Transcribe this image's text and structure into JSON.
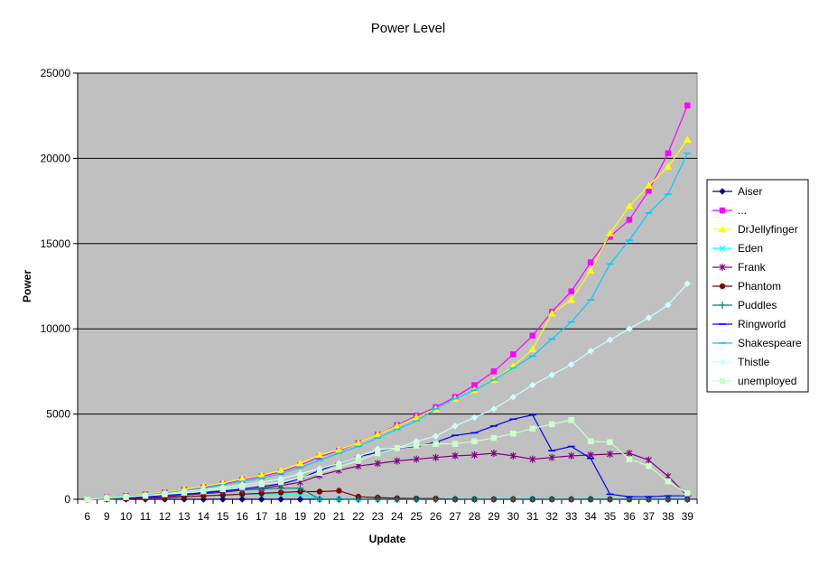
{
  "chart_data": {
    "type": "line",
    "title": "Power Level",
    "xlabel": "Update",
    "ylabel": "Power",
    "categories": [
      "6",
      "9",
      "10",
      "11",
      "12",
      "13",
      "14",
      "15",
      "16",
      "17",
      "18",
      "19",
      "20",
      "21",
      "22",
      "23",
      "24",
      "25",
      "26",
      "27",
      "28",
      "29",
      "30",
      "31",
      "32",
      "33",
      "34",
      "35",
      "36",
      "37",
      "38",
      "39"
    ],
    "ylim": [
      0,
      25000
    ],
    "yticks": [
      "0",
      "5000",
      "10000",
      "15000",
      "20000",
      "25000"
    ],
    "grid": true,
    "legend_position": "right",
    "plot_background": "#c0c0c0",
    "series": [
      {
        "name": "Aiser",
        "color": "#000080",
        "marker": "diamond",
        "values": [
          0,
          0,
          0,
          0,
          0,
          0,
          0,
          0,
          0,
          0,
          0,
          0,
          0,
          0,
          0,
          0,
          0,
          0,
          0,
          0,
          0,
          0,
          0,
          0,
          0,
          0,
          0,
          0,
          0,
          0,
          0,
          0
        ]
      },
      {
        "name": "...",
        "color": "#ff00ff",
        "marker": "square",
        "values": [
          0,
          120,
          200,
          280,
          400,
          550,
          700,
          900,
          1150,
          1350,
          1600,
          2000,
          2500,
          2850,
          3300,
          3800,
          4350,
          4900,
          5400,
          6000,
          6700,
          7500,
          8500,
          9600,
          11000,
          12200,
          13900,
          15400,
          16400,
          18100,
          20300,
          23100
        ]
      },
      {
        "name": "DrJellyfinger",
        "color": "#ffff00",
        "marker": "triangle",
        "values": [
          0,
          130,
          200,
          300,
          420,
          580,
          750,
          950,
          1200,
          1400,
          1700,
          2100,
          2600,
          2900,
          3300,
          3800,
          4300,
          4800,
          5300,
          5900,
          6400,
          7000,
          7800,
          8800,
          10900,
          11700,
          13400,
          15600,
          17200,
          18400,
          19500,
          21100
        ]
      },
      {
        "name": "Eden",
        "color": "#00ffff",
        "marker": "x",
        "values": [
          0,
          0,
          60,
          100,
          150,
          200,
          220,
          250,
          270,
          300,
          300,
          300,
          0,
          0,
          0,
          0,
          0,
          0,
          0,
          0,
          0,
          0,
          0,
          0,
          0,
          0,
          0,
          0,
          0,
          0,
          0,
          0
        ]
      },
      {
        "name": "Frank",
        "color": "#800080",
        "marker": "star",
        "values": [
          0,
          40,
          60,
          100,
          150,
          250,
          330,
          420,
          530,
          650,
          800,
          1000,
          1400,
          1700,
          1950,
          2100,
          2250,
          2350,
          2450,
          2550,
          2600,
          2700,
          2550,
          2350,
          2450,
          2550,
          2600,
          2650,
          2700,
          2300,
          1350,
          200
        ]
      },
      {
        "name": "Phantom",
        "color": "#800000",
        "marker": "circle",
        "values": [
          0,
          50,
          60,
          80,
          100,
          150,
          200,
          250,
          300,
          350,
          400,
          450,
          450,
          500,
          150,
          100,
          60,
          40,
          40,
          0,
          0,
          0,
          0,
          0,
          0,
          0,
          0,
          0,
          0,
          0,
          0,
          0
        ]
      },
      {
        "name": "Puddles",
        "color": "#008080",
        "marker": "plus",
        "values": [
          0,
          80,
          150,
          250,
          350,
          400,
          450,
          500,
          550,
          600,
          650,
          650,
          0,
          0,
          0,
          0,
          0,
          0,
          0,
          0,
          0,
          0,
          0,
          0,
          0,
          0,
          0,
          0,
          0,
          0,
          0,
          0
        ]
      },
      {
        "name": "Ringworld",
        "color": "#0000ff",
        "marker": "dash",
        "values": [
          0,
          60,
          100,
          150,
          230,
          300,
          380,
          480,
          600,
          750,
          900,
          1200,
          1700,
          2100,
          2500,
          2750,
          3000,
          3100,
          3350,
          3750,
          3900,
          4300,
          4700,
          4950,
          2850,
          3100,
          2400,
          300,
          150,
          150,
          200,
          200
        ]
      },
      {
        "name": "Shakespeare",
        "color": "#00ccff",
        "marker": "dash",
        "values": [
          0,
          110,
          180,
          260,
          380,
          520,
          650,
          850,
          1050,
          1250,
          1500,
          1850,
          2300,
          2700,
          3100,
          3600,
          4100,
          4600,
          5300,
          5900,
          6400,
          7000,
          7700,
          8400,
          9400,
          10400,
          11700,
          13800,
          15200,
          16800,
          17900,
          20300
        ]
      },
      {
        "name": "Thistle",
        "color": "#ccffff",
        "marker": "diamond",
        "values": [
          0,
          90,
          150,
          220,
          330,
          450,
          560,
          700,
          850,
          1000,
          1200,
          1500,
          1800,
          2100,
          2500,
          2950,
          3000,
          3400,
          3700,
          4300,
          4800,
          5300,
          6000,
          6700,
          7300,
          7900,
          8700,
          9350,
          10000,
          10650,
          11400,
          12650
        ]
      },
      {
        "name": "unemployed",
        "color": "#ccffcc",
        "marker": "square",
        "values": [
          0,
          70,
          130,
          200,
          290,
          380,
          470,
          600,
          720,
          880,
          1000,
          1250,
          1550,
          1900,
          2250,
          2700,
          3000,
          3150,
          3250,
          3250,
          3400,
          3600,
          3850,
          4150,
          4400,
          4650,
          3400,
          3350,
          2350,
          1950,
          1050,
          350
        ]
      }
    ]
  }
}
